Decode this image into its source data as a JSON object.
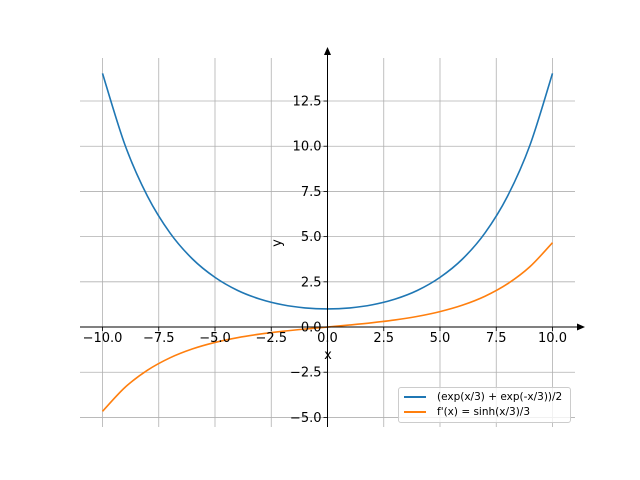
{
  "chart_data": {
    "type": "line",
    "xlabel": "x",
    "ylabel": "y",
    "xlim": [
      -11,
      11
    ],
    "ylim": [
      -5.53,
      14.88
    ],
    "grid": true,
    "legend_placement": "lower-right",
    "xticks": [
      "−10.0",
      "−7.5",
      "−5.0",
      "−2.5",
      "0.0",
      "2.5",
      "5.0",
      "7.5",
      "10.0"
    ],
    "xtick_values": [
      -10,
      -7.5,
      -5,
      -2.5,
      0,
      2.5,
      5,
      7.5,
      10
    ],
    "yticks": [
      "−5.0",
      "−2.5",
      "0.0",
      "2.5",
      "5.0",
      "7.5",
      "10.0",
      "12.5"
    ],
    "ytick_values": [
      -5,
      -2.5,
      0,
      2.5,
      5,
      7.5,
      10,
      12.5
    ],
    "x": [
      -10,
      -9,
      -8,
      -7,
      -6,
      -5,
      -4,
      -3,
      -2,
      -1,
      0,
      1,
      2,
      3,
      4,
      5,
      6,
      7,
      8,
      9,
      10
    ],
    "series": [
      {
        "name": "(exp(x/3) + exp(-x/3))/2",
        "color": "#1f77b4",
        "values": [
          14.0319,
          10.0677,
          7.2338,
          5.2053,
          3.7622,
          2.7456,
          2.0271,
          1.5431,
          1.2306,
          1.0561,
          1.0,
          1.0561,
          1.2306,
          1.5431,
          2.0271,
          2.7456,
          3.7622,
          5.2053,
          7.2338,
          10.0677,
          14.0319
        ]
      },
      {
        "name": "f'(x) = sinh(x/3)/3",
        "color": "#ff7f0e",
        "values": [
          -4.6655,
          -3.3393,
          -2.3881,
          -1.7028,
          -1.209,
          -0.8523,
          -0.589,
          -0.3917,
          -0.2391,
          -0.1132,
          0,
          0.1132,
          0.2391,
          0.3917,
          0.589,
          0.8523,
          1.209,
          1.7028,
          2.3881,
          3.3393,
          4.6655
        ]
      }
    ]
  }
}
